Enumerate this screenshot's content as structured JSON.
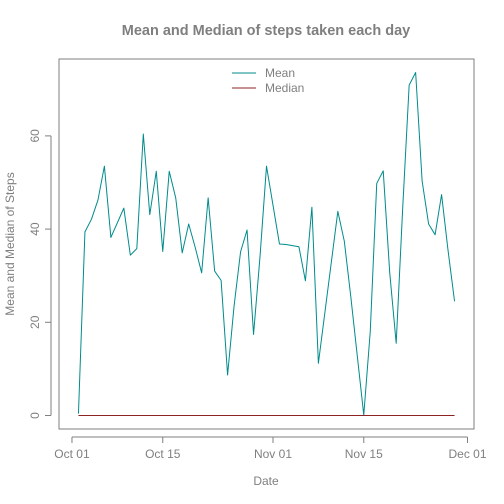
{
  "chart_data": {
    "type": "line",
    "title": "Mean and Median of steps taken each day",
    "xlabel": "Date",
    "ylabel": "Mean and Median of Steps",
    "x_ticks": [
      "Oct 01",
      "Oct 15",
      "Nov 01",
      "Nov 15",
      "Dec 01"
    ],
    "y_ticks": [
      "0",
      "20",
      "40",
      "60"
    ],
    "y_tick_values": [
      0,
      20,
      40,
      60
    ],
    "x_range": [
      "2012-09-29",
      "2012-12-02"
    ],
    "ylim": [
      -2.9,
      76.5
    ],
    "grid": false,
    "legend_position": "top-center",
    "x": [
      "2012-10-02",
      "2012-10-03",
      "2012-10-04",
      "2012-10-05",
      "2012-10-06",
      "2012-10-07",
      "2012-10-09",
      "2012-10-10",
      "2012-10-11",
      "2012-10-12",
      "2012-10-13",
      "2012-10-14",
      "2012-10-15",
      "2012-10-16",
      "2012-10-17",
      "2012-10-18",
      "2012-10-19",
      "2012-10-20",
      "2012-10-21",
      "2012-10-22",
      "2012-10-23",
      "2012-10-24",
      "2012-10-25",
      "2012-10-26",
      "2012-10-27",
      "2012-10-28",
      "2012-10-29",
      "2012-10-30",
      "2012-10-31",
      "2012-11-02",
      "2012-11-03",
      "2012-11-05",
      "2012-11-06",
      "2012-11-07",
      "2012-11-08",
      "2012-11-11",
      "2012-11-12",
      "2012-11-13",
      "2012-11-15",
      "2012-11-16",
      "2012-11-17",
      "2012-11-18",
      "2012-11-19",
      "2012-11-20",
      "2012-11-21",
      "2012-11-22",
      "2012-11-23",
      "2012-11-24",
      "2012-11-25",
      "2012-11-26",
      "2012-11-27",
      "2012-11-28",
      "2012-11-29"
    ],
    "series": [
      {
        "name": "Mean",
        "color": "#008b8b",
        "values": [
          0.4,
          39.4,
          42.1,
          46.2,
          53.5,
          38.2,
          44.5,
          34.4,
          35.8,
          60.4,
          43.1,
          52.4,
          35.2,
          52.4,
          46.7,
          34.9,
          41.1,
          36.1,
          30.6,
          46.7,
          31.0,
          29.0,
          8.7,
          23.5,
          35.1,
          39.8,
          17.4,
          34.1,
          53.5,
          36.8,
          36.7,
          36.2,
          28.9,
          44.7,
          11.2,
          43.8,
          37.4,
          25.5,
          0.1,
          18.0,
          49.8,
          52.5,
          30.7,
          15.5,
          44.4,
          70.9,
          73.6,
          50.3,
          41.1,
          38.8,
          47.4,
          35.4,
          24.5
        ]
      },
      {
        "name": "Median",
        "color": "#8b2323",
        "values": [
          0,
          0,
          0,
          0,
          0,
          0,
          0,
          0,
          0,
          0,
          0,
          0,
          0,
          0,
          0,
          0,
          0,
          0,
          0,
          0,
          0,
          0,
          0,
          0,
          0,
          0,
          0,
          0,
          0,
          0,
          0,
          0,
          0,
          0,
          0,
          0,
          0,
          0,
          0,
          0,
          0,
          0,
          0,
          0,
          0,
          0,
          0,
          0,
          0,
          0,
          0,
          0,
          0
        ]
      }
    ]
  },
  "colors": {
    "axis": "#7f7f7f",
    "text": "#7f7f7f",
    "mean": "#008b8b",
    "median": "#8b2323"
  }
}
